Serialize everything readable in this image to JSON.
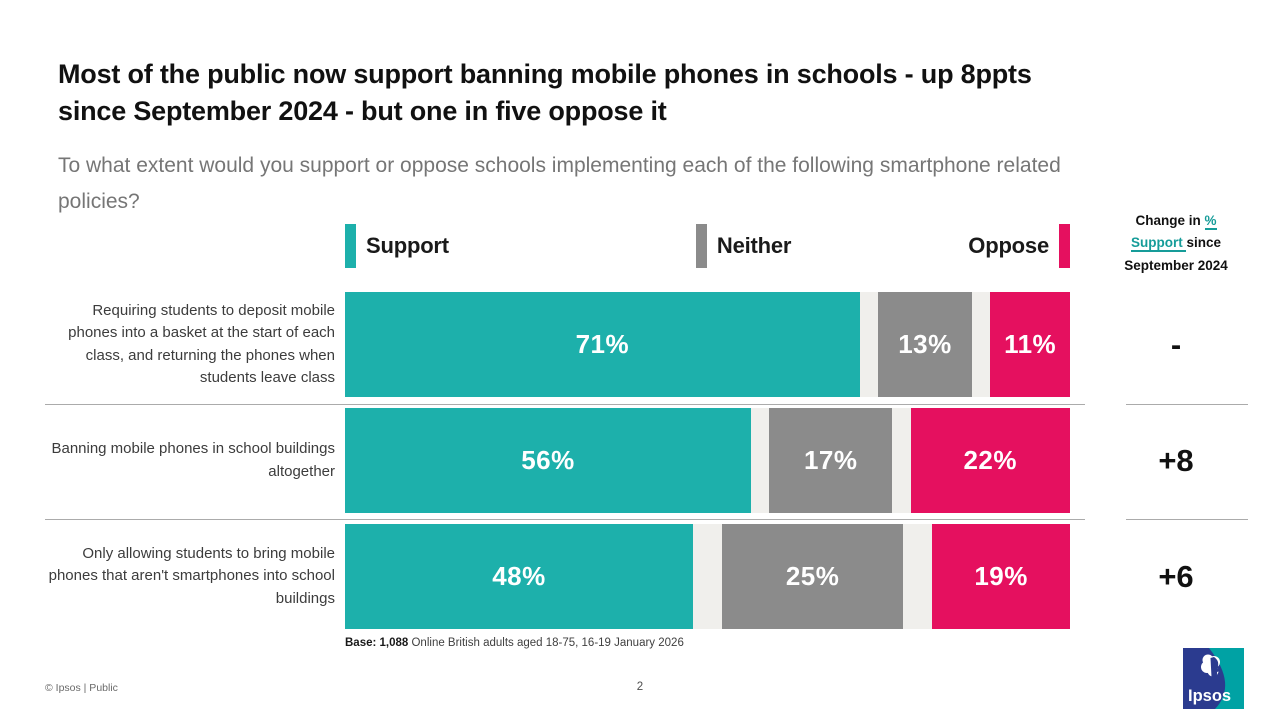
{
  "slide": {
    "title": "Most of the public now support banning mobile phones in schools - up 8ppts since September 2024 - but one in five oppose it",
    "subtitle": "To what extent would you support or oppose schools implementing each of the following smartphone related policies?"
  },
  "legend": {
    "support": "Support",
    "neither": "Neither",
    "oppose": "Oppose"
  },
  "change_header": {
    "line1_text": "Change in ",
    "line1_hl": "%",
    "line2_hl": "Support ",
    "line2_text": "since",
    "line3": "September 2024"
  },
  "chart_data": {
    "type": "bar",
    "stacked": true,
    "orientation": "horizontal",
    "unit": "percent",
    "axis_range": [
      0,
      100
    ],
    "grid": false,
    "legend_position": "top",
    "legend_entries": [
      "Support",
      "Neither",
      "Oppose"
    ],
    "colors": {
      "support": "#1db0ab",
      "neither": "#8b8b8b",
      "oppose": "#e5105f",
      "track": "#f0efec",
      "header_highlight": "#169c99"
    },
    "rows": [
      {
        "label": "Requiring students to deposit mobile phones into a basket at the start of each class, and returning the phones when students leave class",
        "support": {
          "pct": 71,
          "label": "71%"
        },
        "neither": {
          "pct": 13,
          "label": "13%"
        },
        "oppose": {
          "pct": 11,
          "label": "11%"
        },
        "change": "-"
      },
      {
        "label": "Banning mobile phones in school buildings altogether",
        "support": {
          "pct": 56,
          "label": "56%"
        },
        "neither": {
          "pct": 17,
          "label": "17%"
        },
        "oppose": {
          "pct": 22,
          "label": "22%"
        },
        "change": "+8"
      },
      {
        "label": "Only allowing students to bring mobile phones that aren't smartphones into school buildings",
        "support": {
          "pct": 48,
          "label": "48%"
        },
        "neither": {
          "pct": 25,
          "label": "25%"
        },
        "oppose": {
          "pct": 19,
          "label": "19%"
        },
        "change": "+6"
      }
    ]
  },
  "footnote": {
    "base_label": "Base: 1,088",
    "base_text": " Online British adults aged 18-75, 16-19 January 2026"
  },
  "footer": {
    "left": "© Ipsos | Public",
    "page": "2"
  },
  "logo": {
    "text": "Ipsos"
  }
}
